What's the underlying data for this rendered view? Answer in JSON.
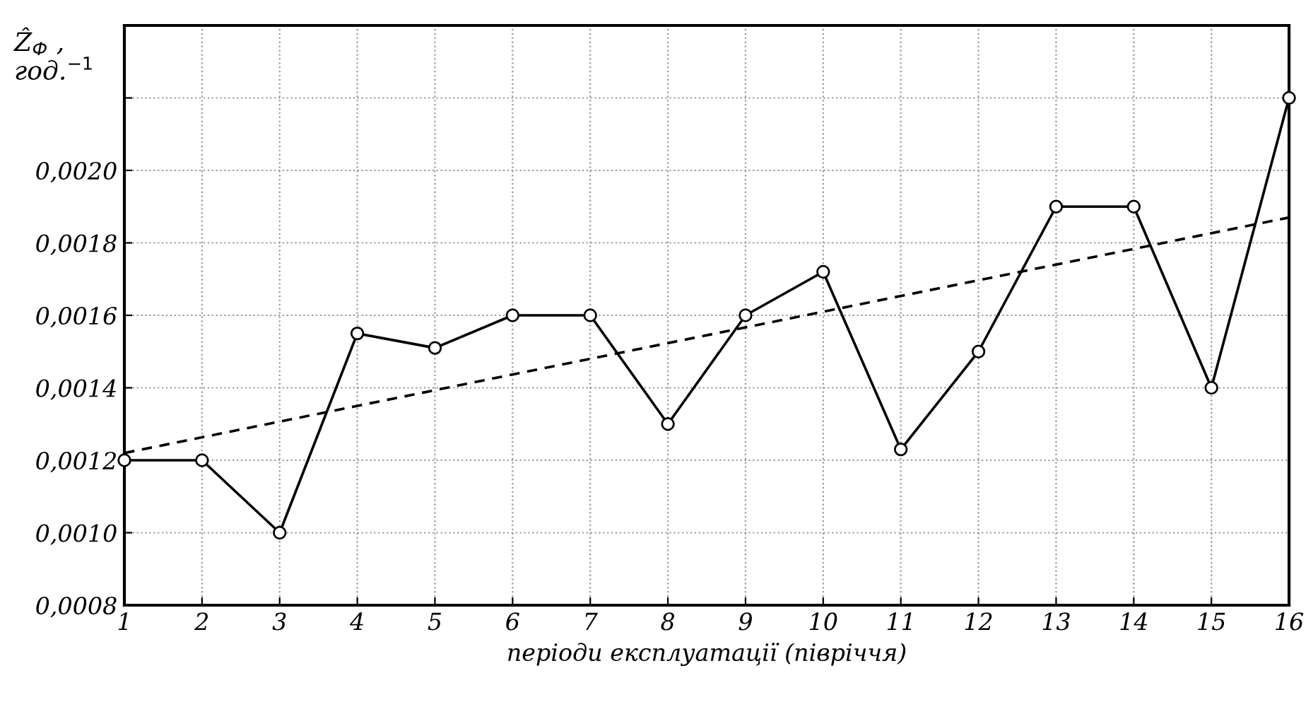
{
  "chart_data": {
    "type": "line",
    "xlabel": "періоди експлуатації (півріччя)",
    "ylabel": "Ẑ$_{Ф}$ ,\nгод.$^{−1}$",
    "x": [
      1,
      2,
      3,
      4,
      5,
      6,
      7,
      8,
      9,
      10,
      11,
      12,
      13,
      14,
      15,
      16
    ],
    "series": [
      {
        "color": "#000000",
        "values": [
          0.0012,
          0.0012,
          0.001,
          0.00155,
          0.00151,
          0.0016,
          0.0016,
          0.0013,
          0.0016,
          0.00172,
          0.00123,
          0.0015,
          0.0019,
          0.0019,
          0.0014,
          0.0022
        ],
        "marker": "circle",
        "line_style": "solid"
      },
      {
        "type": "line",
        "color": "#000000",
        "x": [
          1,
          16
        ],
        "values": [
          0.00122,
          0.00187
        ],
        "marker": "none",
        "line_style": "dashed"
      }
    ],
    "xlim": [
      1,
      16
    ],
    "xticks": [
      1,
      2,
      3,
      4,
      5,
      6,
      7,
      8,
      9,
      10,
      11,
      12,
      13,
      14,
      15,
      16
    ],
    "ylim": [
      0.0008,
      0.0024
    ],
    "yticks": [
      {
        "value": 0.0008,
        "label": "0,0008"
      },
      {
        "value": 0.001,
        "label": "0,0010"
      },
      {
        "value": 0.0012,
        "label": "0,0012"
      },
      {
        "value": 0.0014,
        "label": "0,0014"
      },
      {
        "value": 0.0016,
        "label": "0,0016"
      },
      {
        "value": 0.0018,
        "label": "0,0018"
      },
      {
        "value": 0.002,
        "label": "0,0020"
      },
      {
        "value": 0.0022,
        "label": null
      },
      {
        "value": 0.0024,
        "label": null
      }
    ],
    "grid": true,
    "legend": false
  }
}
